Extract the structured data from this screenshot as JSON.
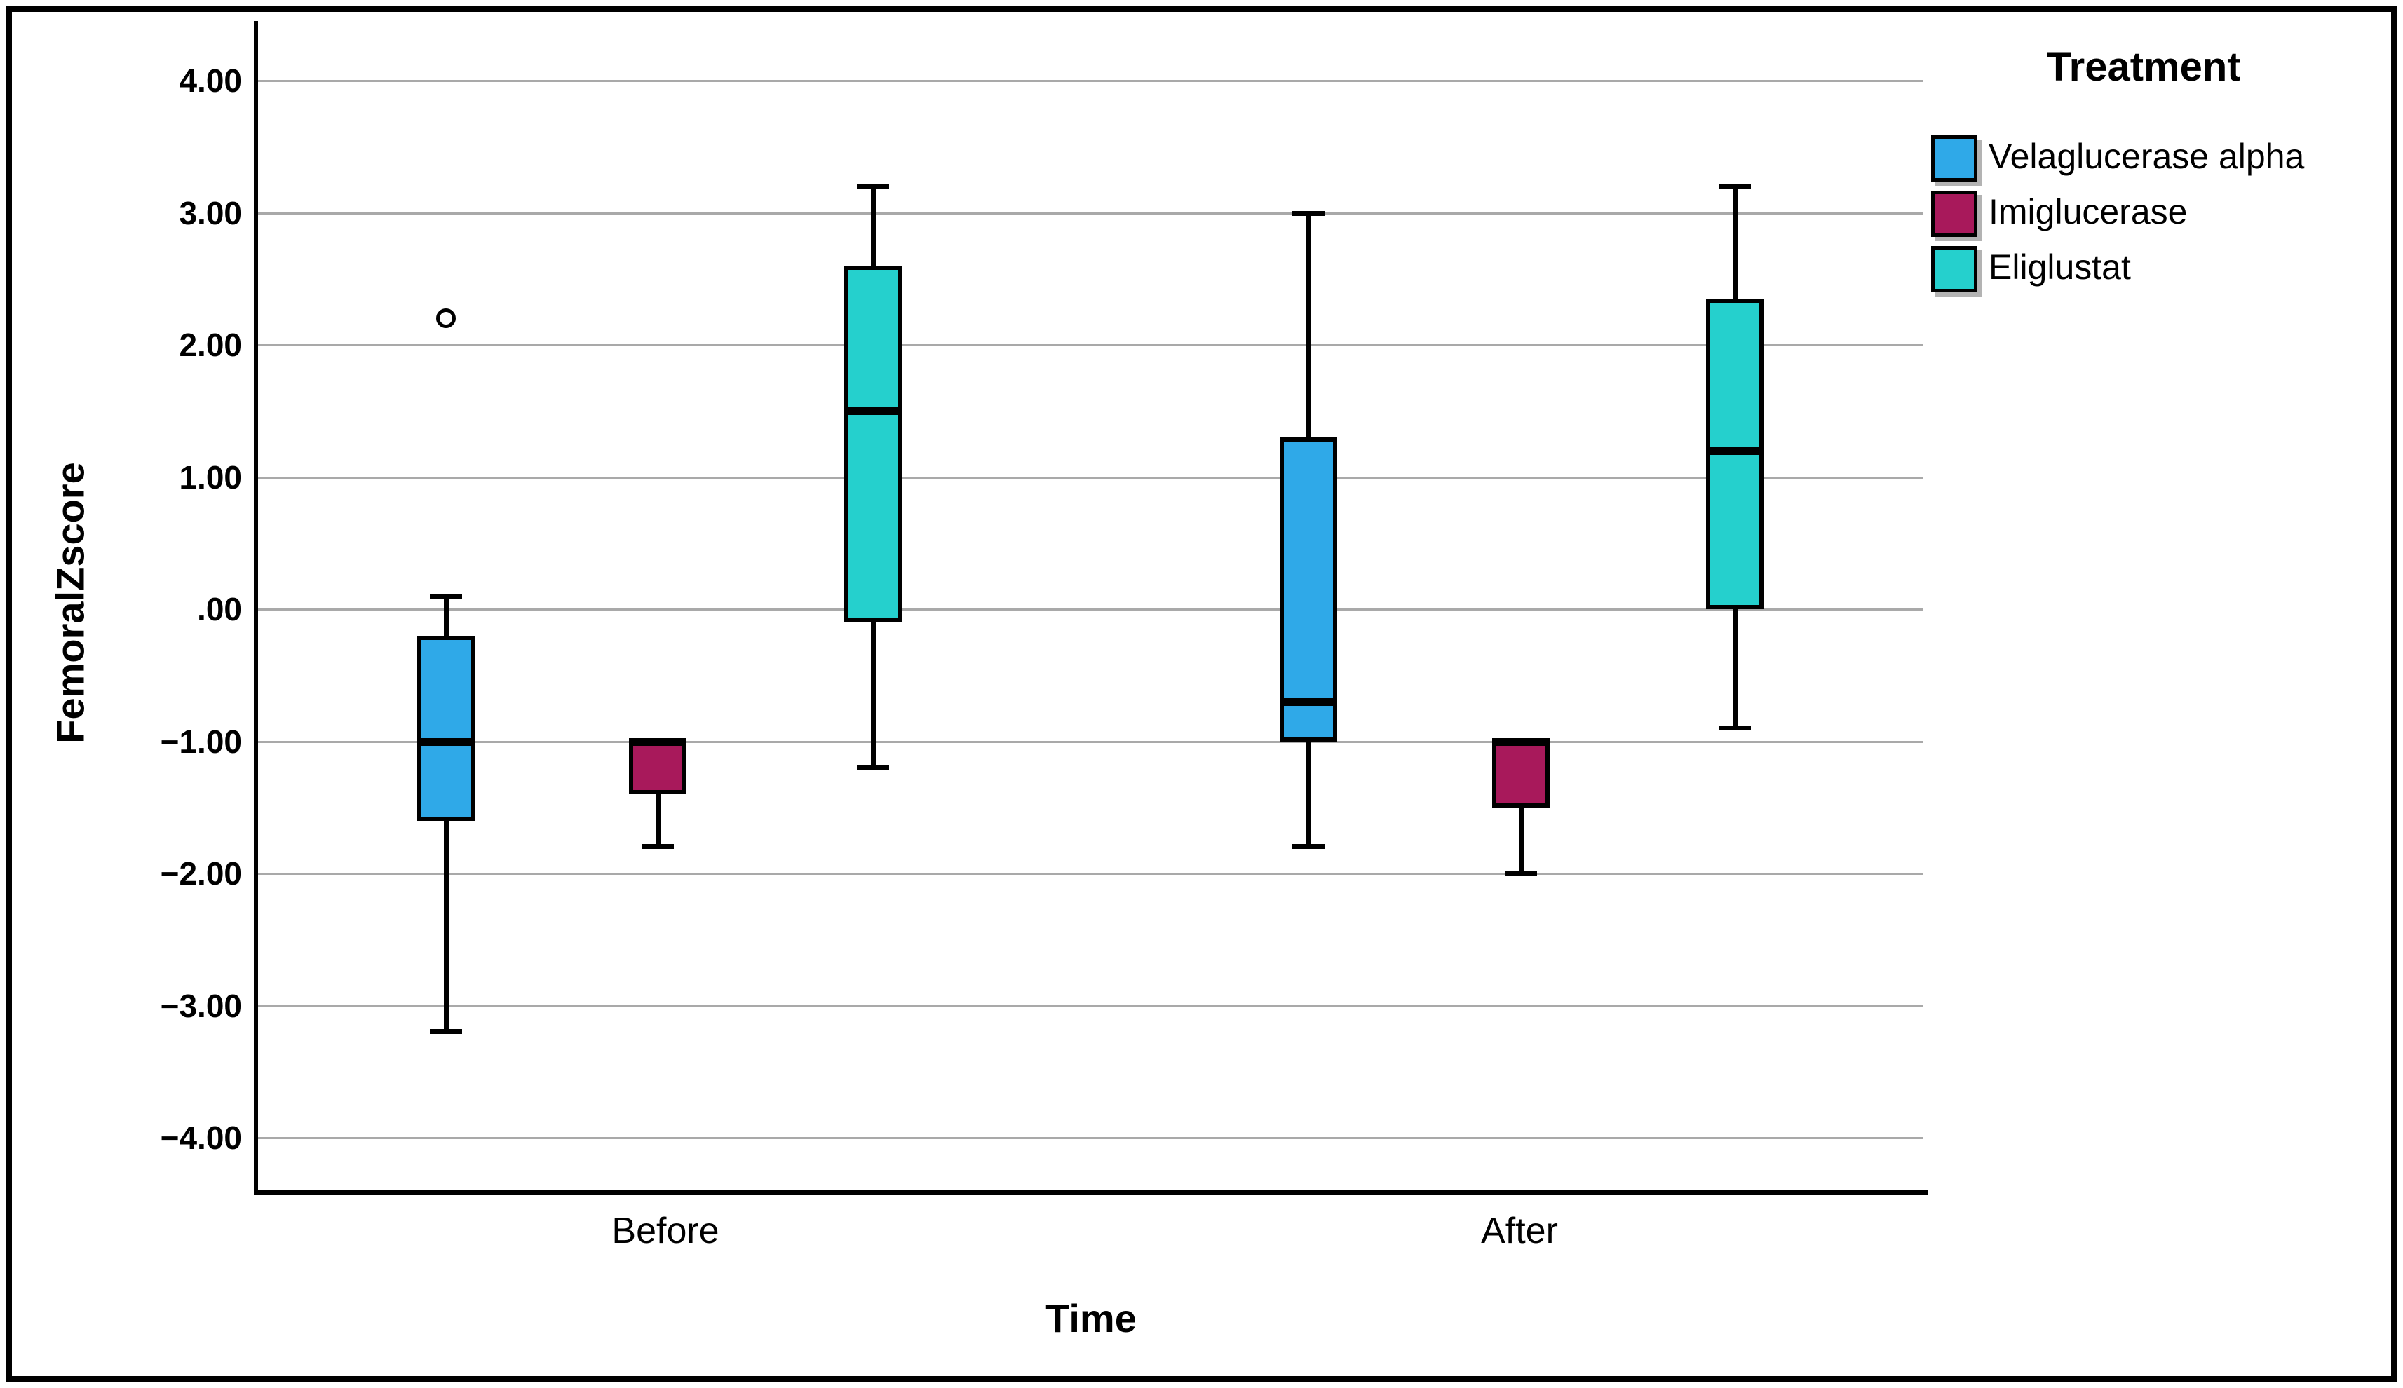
{
  "chart_data": {
    "type": "boxplot",
    "title": "",
    "xlabel": "Time",
    "ylabel": "FemoralZscore",
    "categories": [
      "Before",
      "After"
    ],
    "y_ticks": [
      "4.00",
      "3.00",
      "2.00",
      "1.00",
      ".00",
      "−1.00",
      "−2.00",
      "−3.00",
      "−4.00"
    ],
    "y_tick_values": [
      4,
      3,
      2,
      1,
      0,
      -1,
      -2,
      -3,
      -4
    ],
    "ylim": [
      -4.5,
      4.45
    ],
    "grid": true,
    "legend": {
      "title": "Treatment",
      "position": "top-right",
      "entries": [
        {
          "label": "Velaglucerase alpha",
          "color": "#2FA9E8"
        },
        {
          "label": "Imiglucerase",
          "color": "#A8195B"
        },
        {
          "label": "Eliglustat",
          "color": "#25D0CD"
        }
      ]
    },
    "series": [
      {
        "name": "Velaglucerase alpha",
        "color": "#2FA9E8",
        "boxes": [
          {
            "category": "Before",
            "whisker_low": -3.2,
            "q1": -1.6,
            "median": -1.0,
            "q3": -0.2,
            "whisker_high": 0.1,
            "outliers": [
              2.2
            ]
          },
          {
            "category": "After",
            "whisker_low": -1.8,
            "q1": -1.0,
            "median": -0.7,
            "q3": 1.3,
            "whisker_high": 3.0,
            "outliers": []
          }
        ]
      },
      {
        "name": "Imiglucerase",
        "color": "#A8195B",
        "boxes": [
          {
            "category": "Before",
            "whisker_low": -1.8,
            "q1": -1.4,
            "median": -1.0,
            "q3": -1.0,
            "whisker_high": null,
            "outliers": []
          },
          {
            "category": "After",
            "whisker_low": -2.0,
            "q1": -1.5,
            "median": -1.0,
            "q3": -1.0,
            "whisker_high": null,
            "outliers": []
          }
        ]
      },
      {
        "name": "Eliglustat",
        "color": "#25D0CD",
        "boxes": [
          {
            "category": "Before",
            "whisker_low": -1.2,
            "q1": -0.1,
            "median": 1.5,
            "q3": 2.6,
            "whisker_high": 3.2,
            "outliers": []
          },
          {
            "category": "After",
            "whisker_low": -0.9,
            "q1": 0.0,
            "median": 1.2,
            "q3": 2.35,
            "whisker_high": 3.2,
            "outliers": []
          }
        ]
      }
    ],
    "colors": {
      "gridline": "#A9A9A9",
      "axis": "#000000",
      "box_border": "#000000",
      "background": "#FFFFFF"
    }
  }
}
